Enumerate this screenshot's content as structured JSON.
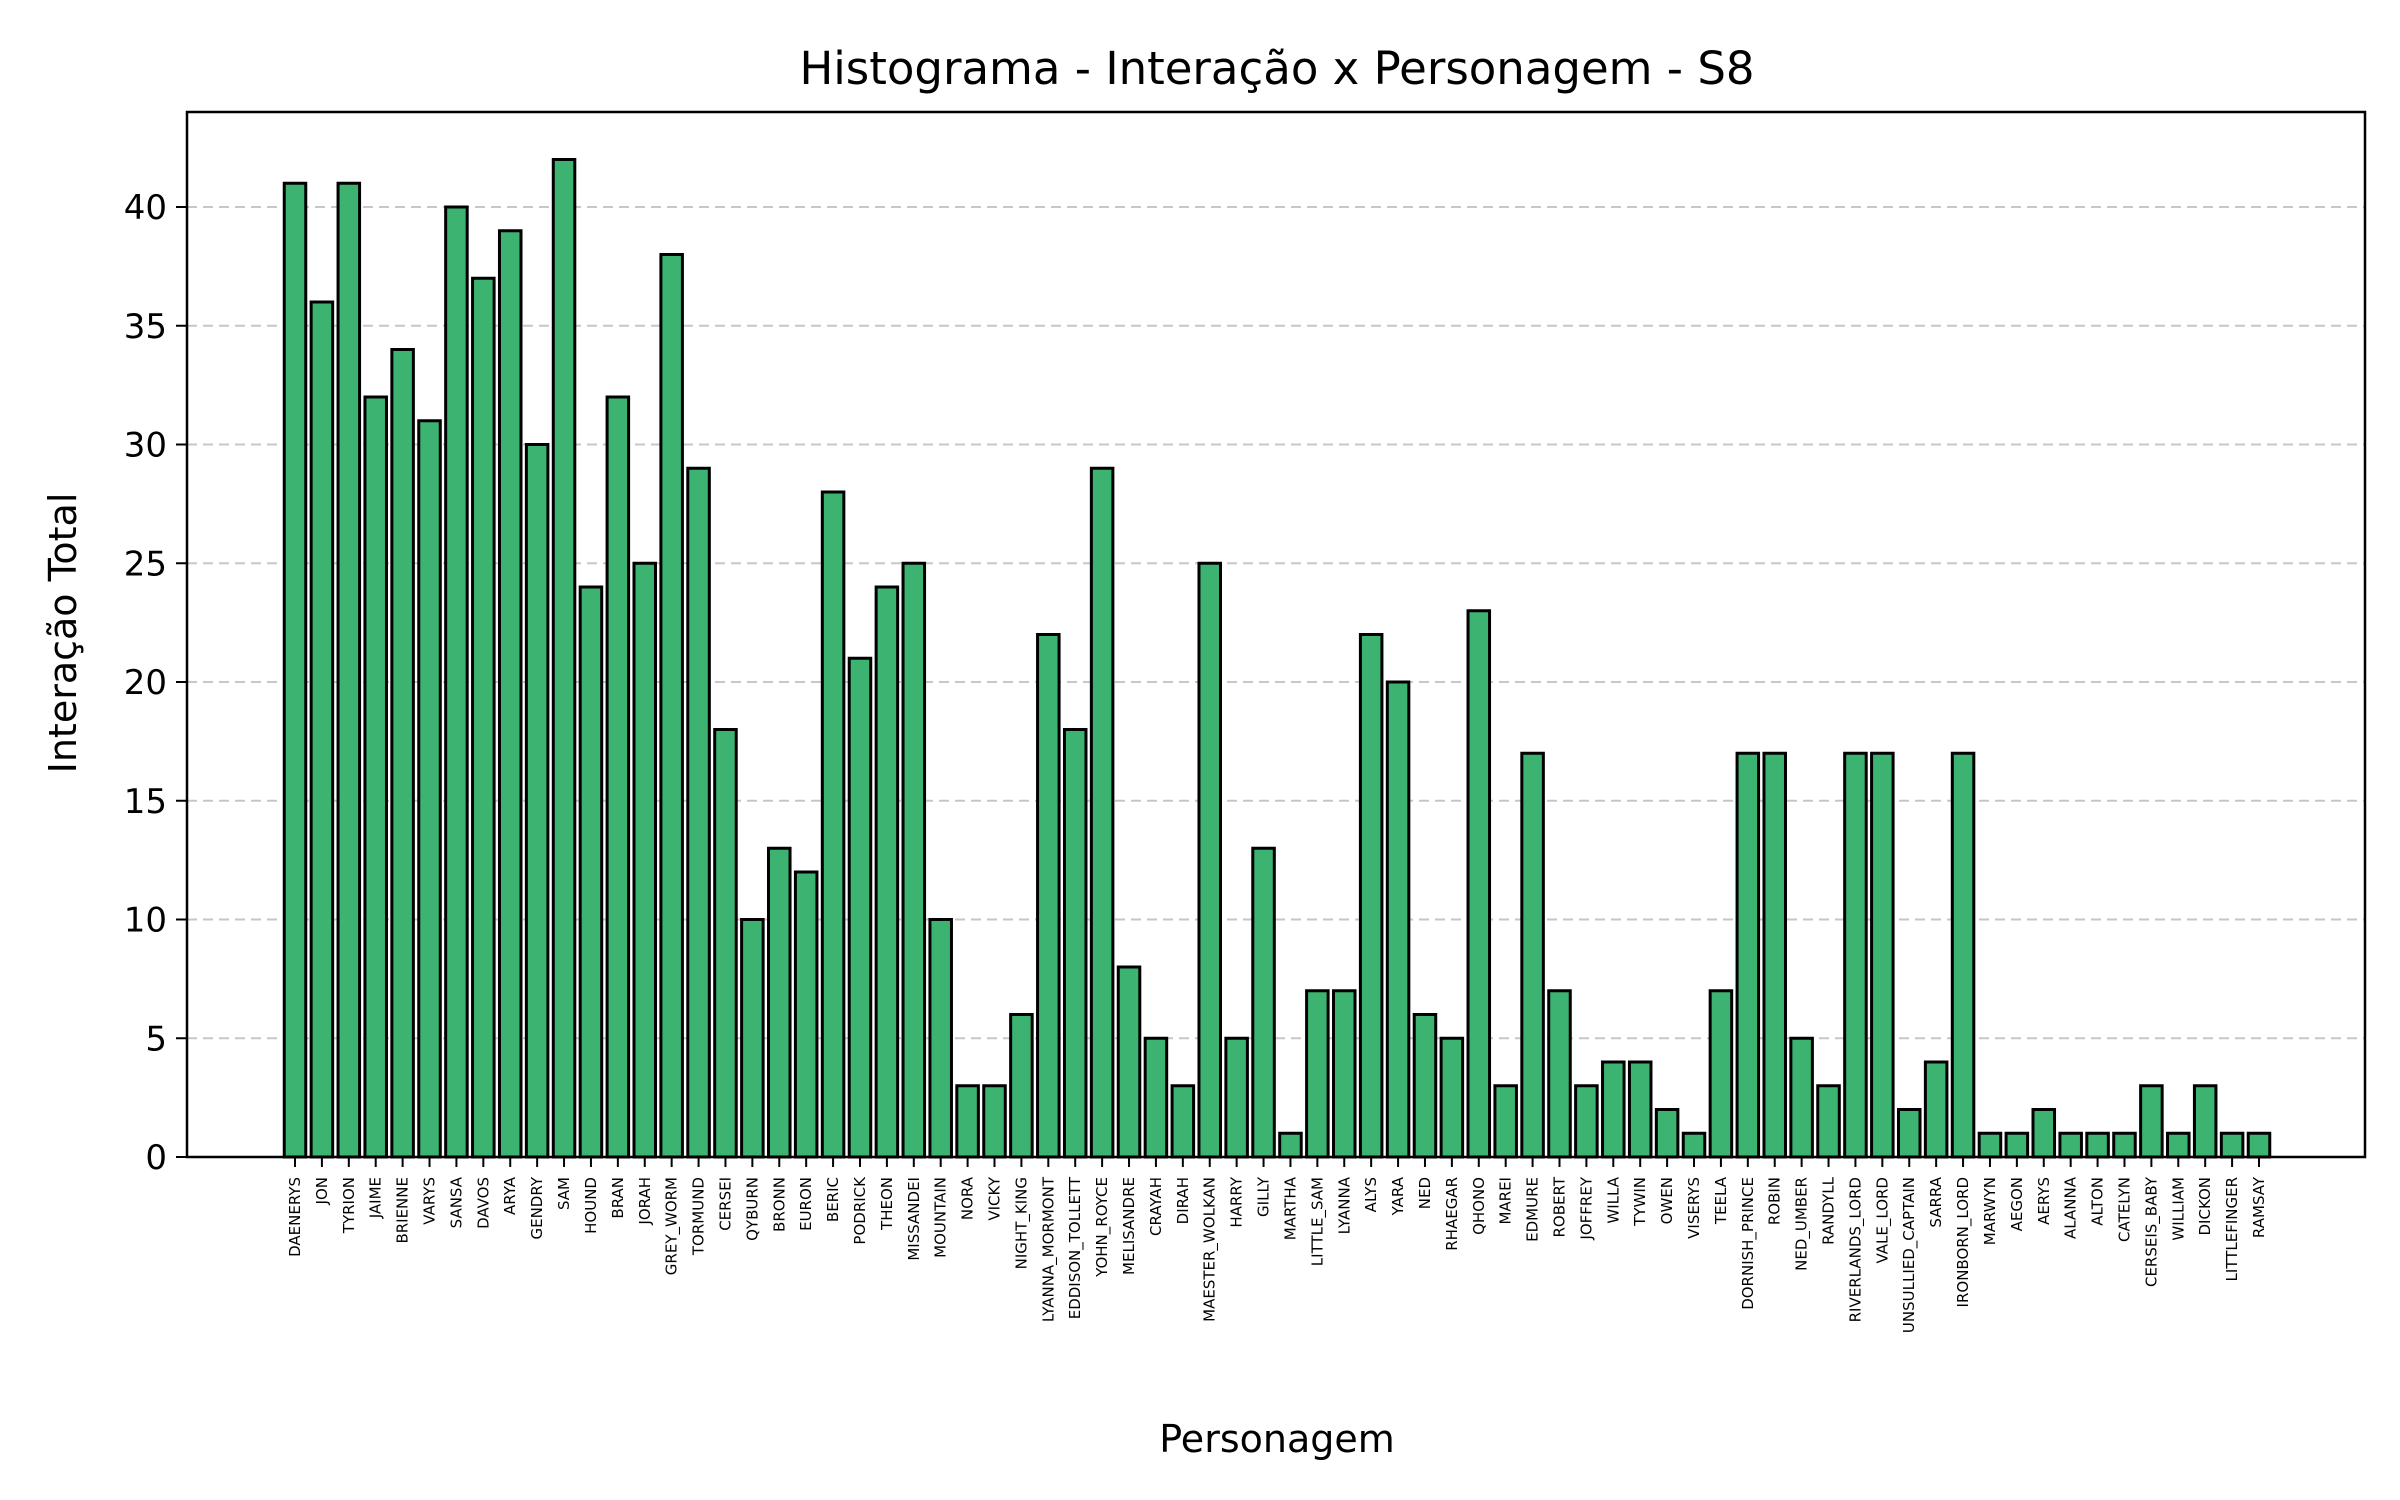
{
  "chart_data": {
    "type": "bar",
    "title": "Histograma - Interação x Personagem - S8",
    "xlabel": "Personagem",
    "ylabel": "Interação Total",
    "ylim": [
      0,
      44
    ],
    "yticks": [
      "0",
      "5",
      "10",
      "15",
      "20",
      "25",
      "30",
      "35",
      "40"
    ],
    "grid": "horizontal dashed",
    "bar_color": "#3cb371",
    "edge_color": "#000000",
    "categories": [
      "DAENERYS",
      "JON",
      "TYRION",
      "JAIME",
      "BRIENNE",
      "VARYS",
      "SANSA",
      "DAVOS",
      "ARYA",
      "GENDRY",
      "SAM",
      "HOUND",
      "BRAN",
      "JORAH",
      "GREY_WORM",
      "TORMUND",
      "CERSEI",
      "QYBURN",
      "BRONN",
      "EURON",
      "BERIC",
      "PODRICK",
      "THEON",
      "MISSANDEI",
      "MOUNTAIN",
      "NORA",
      "VICKY",
      "NIGHT_KING",
      "LYANNA_MORMONT",
      "EDDISON_TOLLETT",
      "YOHN_ROYCE",
      "MELISANDRE",
      "CRAYAH",
      "DIRAH",
      "MAESTER_WOLKAN",
      "HARRY",
      "GILLY",
      "MARTHA",
      "LITTLE_SAM",
      "LYANNA",
      "ALYS",
      "YARA",
      "NED",
      "RHAEGAR",
      "QHONO",
      "MAREI",
      "EDMURE",
      "ROBERT",
      "JOFFREY",
      "WILLA",
      "TYWIN",
      "OWEN",
      "VISERYS",
      "TEELA",
      "DORNISH_PRINCE",
      "ROBIN",
      "NED_UMBER",
      "RANDYLL",
      "RIVERLANDS_LORD",
      "VALE_LORD",
      "UNSULLIED_CAPTAIN",
      "SARRA",
      "IRONBORN_LORD",
      "MARWYN",
      "AEGON",
      "AERYS",
      "ALANNA",
      "ALTON",
      "CATELYN",
      "CERSEIS_BABY",
      "WILLIAM",
      "DICKON",
      "LITTLEFINGER",
      "RAMSAY"
    ],
    "values": [
      41,
      36,
      41,
      32,
      34,
      31,
      40,
      37,
      39,
      30,
      42,
      24,
      32,
      25,
      38,
      29,
      18,
      10,
      13,
      12,
      28,
      21,
      24,
      25,
      10,
      3,
      3,
      6,
      22,
      18,
      29,
      8,
      5,
      3,
      25,
      5,
      13,
      1,
      7,
      7,
      22,
      20,
      6,
      5,
      23,
      3,
      17,
      7,
      3,
      4,
      4,
      2,
      1,
      7,
      17,
      17,
      5,
      3,
      17,
      17,
      2,
      4,
      17,
      1,
      1,
      2,
      1,
      1,
      1,
      3,
      1,
      3,
      1,
      1
    ]
  }
}
